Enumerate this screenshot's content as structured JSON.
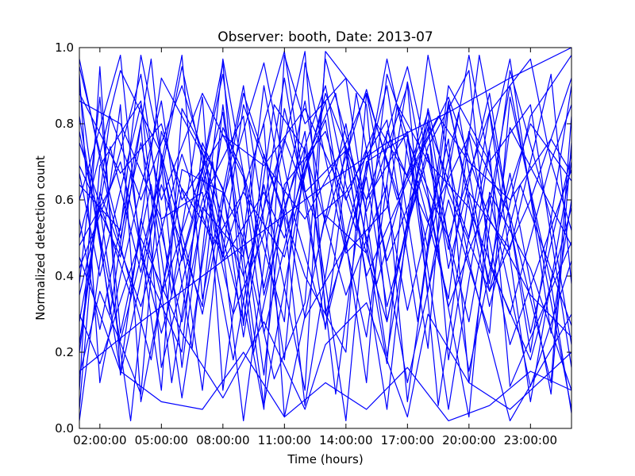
{
  "chart_data": {
    "type": "line",
    "title": "Observer: booth, Date: 2013-07",
    "xlabel": "Time (hours)",
    "ylabel": "Normalized detection count",
    "xlim": [
      "01:00:00",
      "25:00:00"
    ],
    "ylim": [
      0,
      1.0
    ],
    "grid": false,
    "line_color": "#0000ff",
    "x_ticks": [
      {
        "value": "02:00:00",
        "label": "02:00:00"
      },
      {
        "value": "05:00:00",
        "label": "05:00:00"
      },
      {
        "value": "08:00:00",
        "label": "08:00:00"
      },
      {
        "value": "11:00:00",
        "label": "11:00:00"
      },
      {
        "value": "14:00:00",
        "label": "14:00:00"
      },
      {
        "value": "17:00:00",
        "label": "17:00:00"
      },
      {
        "value": "20:00:00",
        "label": "20:00:00"
      },
      {
        "value": "23:00:00",
        "label": "23:00:00"
      }
    ],
    "y_ticks": [
      {
        "value": 0.0,
        "label": "0.0"
      },
      {
        "value": 0.2,
        "label": "0.2"
      },
      {
        "value": 0.4,
        "label": "0.4"
      },
      {
        "value": 0.6,
        "label": "0.6"
      },
      {
        "value": 0.8,
        "label": "0.8"
      },
      {
        "value": 1.0,
        "label": "1.0"
      }
    ],
    "series": [
      {
        "x": [
          "01:00:00",
          "03:00:00",
          "05:00:00",
          "07:00:00",
          "08:30:00",
          "10:00:00",
          "12:00:00",
          "13:00:00",
          "15:00:00",
          "16:00:00",
          "18:00:00",
          "19:00:00",
          "21:00:00",
          "23:00:00",
          "25:00:00"
        ],
        "y": [
          0.86,
          0.8,
          0.55,
          0.62,
          0.18,
          0.64,
          0.1,
          0.99,
          0.85,
          0.28,
          0.79,
          0.42,
          0.88,
          0.2,
          0.9
        ]
      },
      {
        "x": [
          "01:00:00",
          "02:00:00",
          "04:00:00",
          "05:00:00",
          "07:00:00",
          "09:00:00",
          "11:00:00",
          "12:00:00",
          "14:00:00",
          "15:30:00",
          "17:00:00",
          "18:00:00",
          "20:00:00",
          "22:00:00",
          "24:00:00",
          "25:00:00"
        ],
        "y": [
          0.14,
          0.36,
          0.09,
          0.72,
          0.3,
          0.88,
          0.55,
          0.06,
          0.74,
          0.38,
          0.67,
          0.83,
          0.15,
          0.67,
          0.09,
          0.75
        ]
      },
      {
        "x": [
          "01:00:00",
          "02:30:00",
          "03:30:00",
          "05:00:00",
          "06:00:00",
          "08:00:00",
          "09:00:00",
          "11:00:00",
          "12:30:00",
          "14:00:00",
          "16:00:00",
          "17:00:00",
          "19:00:00",
          "21:00:00",
          "23:00:00",
          "25:00:00"
        ],
        "y": [
          0.9,
          0.3,
          0.67,
          0.1,
          0.84,
          0.63,
          0.24,
          0.92,
          0.43,
          0.8,
          0.17,
          0.76,
          0.5,
          0.83,
          0.07,
          0.7
        ]
      },
      {
        "x": [
          "01:00:00",
          "03:00:00",
          "04:00:00",
          "06:00:00",
          "07:00:00",
          "09:00:00",
          "10:30:00",
          "12:00:00",
          "13:00:00",
          "15:00:00",
          "17:00:00",
          "18:30:00",
          "20:00:00",
          "22:00:00",
          "24:00:00",
          "25:00:00"
        ],
        "y": [
          0.6,
          0.98,
          0.45,
          0.2,
          0.75,
          0.5,
          0.13,
          0.33,
          0.97,
          0.57,
          0.9,
          0.06,
          0.62,
          0.47,
          0.93,
          0.38
        ]
      },
      {
        "x": [
          "01:00:00",
          "02:00:00",
          "03:00:00",
          "05:00:00",
          "07:00:00",
          "08:00:00",
          "10:00:00",
          "12:00:00",
          "13:00:00",
          "14:00:00",
          "16:00:00",
          "18:00:00",
          "19:00:00",
          "21:00:00",
          "22:00:00",
          "25:00:00"
        ],
        "y": [
          0.1,
          0.95,
          0.14,
          0.64,
          0.32,
          0.85,
          0.06,
          0.68,
          0.81,
          0.47,
          0.9,
          0.21,
          0.85,
          0.38,
          0.79,
          0.48
        ]
      },
      {
        "x": [
          "01:00:00",
          "02:30:00",
          "04:00:00",
          "05:30:00",
          "07:00:00",
          "08:00:00",
          "09:30:00",
          "11:00:00",
          "13:00:00",
          "14:30:00",
          "16:00:00",
          "17:30:00",
          "19:00:00",
          "20:30:00",
          "23:00:00",
          "25:00:00"
        ],
        "y": [
          0.48,
          0.63,
          0.93,
          0.35,
          0.87,
          0.1,
          0.71,
          0.99,
          0.26,
          0.88,
          0.44,
          0.65,
          0.34,
          0.98,
          0.25,
          0.72
        ]
      },
      {
        "x": [
          "01:00:00",
          "03:00:00",
          "05:00:00",
          "06:00:00",
          "08:00:00",
          "10:00:00",
          "11:00:00",
          "13:00:00",
          "15:00:00",
          "16:00:00",
          "18:00:00",
          "20:00:00",
          "21:00:00",
          "23:00:00",
          "25:00:00"
        ],
        "y": [
          0.78,
          0.23,
          0.67,
          0.95,
          0.45,
          0.8,
          0.03,
          0.56,
          0.46,
          0.93,
          0.6,
          0.03,
          0.62,
          0.42,
          0.1
        ]
      },
      {
        "x": [
          "01:00:00",
          "02:00:00",
          "03:30:00",
          "05:00:00",
          "06:30:00",
          "08:00:00",
          "09:00:00",
          "10:00:00",
          "12:00:00",
          "14:00:00",
          "15:00:00",
          "17:00:00",
          "19:00:00",
          "20:00:00",
          "22:00:00",
          "24:00:00",
          "25:00:00"
        ],
        "y": [
          0.35,
          0.58,
          0.02,
          0.78,
          0.55,
          0.96,
          0.27,
          0.72,
          0.4,
          0.2,
          0.88,
          0.31,
          0.76,
          0.12,
          0.94,
          0.55,
          0.22
        ]
      },
      {
        "x": [
          "01:00:00",
          "03:00:00",
          "04:00:00",
          "06:00:00",
          "07:30:00",
          "09:00:00",
          "11:00:00",
          "12:00:00",
          "14:00:00",
          "16:00:00",
          "17:00:00",
          "18:00:00",
          "20:00:00",
          "22:00:00",
          "25:00:00"
        ],
        "y": [
          0.95,
          0.5,
          0.75,
          0.28,
          0.7,
          0.02,
          0.84,
          0.62,
          0.73,
          0.05,
          0.55,
          0.98,
          0.44,
          0.02,
          0.3
        ]
      },
      {
        "x": [
          "01:00:00",
          "02:00:00",
          "04:00:00",
          "05:00:00",
          "07:00:00",
          "09:00:00",
          "10:00:00",
          "12:00:00",
          "13:30:00",
          "15:00:00",
          "17:00:00",
          "18:00:00",
          "20:00:00",
          "21:30:00",
          "23:00:00",
          "25:00:00"
        ],
        "y": [
          0.55,
          0.26,
          0.8,
          0.16,
          0.6,
          0.82,
          0.35,
          0.78,
          0.09,
          0.7,
          0.77,
          0.36,
          0.98,
          0.55,
          0.8,
          0.65
        ]
      },
      {
        "x": [
          "01:00:00",
          "02:30:00",
          "04:00:00",
          "06:00:00",
          "08:00:00",
          "09:00:00",
          "11:00:00",
          "12:30:00",
          "14:00:00",
          "16:00:00",
          "17:30:00",
          "19:00:00",
          "21:00:00",
          "23:00:00",
          "25:00:00"
        ],
        "y": [
          0.2,
          0.82,
          0.6,
          0.9,
          0.55,
          0.4,
          0.76,
          0.55,
          0.62,
          0.81,
          0.28,
          0.9,
          0.7,
          0.85,
          0.16
        ]
      },
      {
        "x": [
          "01:00:00",
          "03:00:00",
          "04:30:00",
          "06:00:00",
          "07:00:00",
          "09:00:00",
          "10:00:00",
          "12:00:00",
          "14:00:00",
          "15:00:00",
          "16:30:00",
          "18:00:00",
          "20:00:00",
          "22:00:00",
          "24:00:00",
          "25:00:00"
        ],
        "y": [
          0.69,
          0.45,
          0.97,
          0.16,
          0.58,
          0.45,
          0.9,
          0.29,
          0.48,
          0.24,
          0.85,
          0.7,
          0.58,
          0.3,
          0.7,
          0.52
        ]
      },
      {
        "x": [
          "01:00:00",
          "02:00:00",
          "03:00:00",
          "05:00:00",
          "07:00:00",
          "08:00:00",
          "10:00:00",
          "11:30:00",
          "13:00:00",
          "15:00:00",
          "17:00:00",
          "19:00:00",
          "21:00:00",
          "22:00:00",
          "24:00:00",
          "25:00:00"
        ],
        "y": [
          0.93,
          0.12,
          0.4,
          0.86,
          0.1,
          0.6,
          0.96,
          0.55,
          0.27,
          0.73,
          0.12,
          0.6,
          0.25,
          0.87,
          0.38,
          0.04
        ]
      },
      {
        "x": [
          "01:00:00",
          "03:00:00",
          "05:00:00",
          "06:30:00",
          "08:00:00",
          "10:00:00",
          "11:00:00",
          "13:00:00",
          "14:30:00",
          "16:00:00",
          "18:00:00",
          "19:30:00",
          "21:00:00",
          "23:00:00",
          "25:00:00"
        ],
        "y": [
          0.42,
          0.7,
          0.25,
          0.55,
          0.93,
          0.14,
          0.64,
          0.78,
          0.52,
          0.97,
          0.47,
          0.83,
          0.36,
          0.6,
          0.92
        ]
      },
      {
        "x": [
          "01:00:00",
          "02:00:00",
          "04:00:00",
          "05:30:00",
          "07:00:00",
          "08:30:00",
          "10:00:00",
          "12:00:00",
          "13:00:00",
          "15:00:00",
          "16:00:00",
          "18:00:00",
          "20:00:00",
          "21:00:00",
          "23:00:00",
          "25:00:00"
        ],
        "y": [
          0.05,
          0.69,
          0.86,
          0.12,
          0.66,
          0.3,
          0.51,
          0.99,
          0.3,
          0.66,
          0.32,
          0.74,
          0.94,
          0.43,
          0.18,
          0.58
        ]
      },
      {
        "x": [
          "01:00:00",
          "03:30:00",
          "05:00:00",
          "07:00:00",
          "09:00:00",
          "10:30:00",
          "12:00:00",
          "14:00:00",
          "16:00:00",
          "17:00:00",
          "19:00:00",
          "21:00:00",
          "22:30:00",
          "25:00:00"
        ],
        "y": [
          0.75,
          0.35,
          0.92,
          0.72,
          0.28,
          0.85,
          0.73,
          0.35,
          0.64,
          0.07,
          0.86,
          0.32,
          0.64,
          0.27
        ]
      },
      {
        "x": [
          "01:00:00",
          "02:30:00",
          "04:00:00",
          "06:00:00",
          "07:00:00",
          "09:00:00",
          "11:00:00",
          "12:00:00",
          "14:00:00",
          "15:00:00",
          "17:00:00",
          "19:00:00",
          "20:00:00",
          "22:00:00",
          "24:00:00",
          "25:00:00"
        ],
        "y": [
          0.28,
          0.74,
          0.41,
          0.98,
          0.34,
          0.9,
          0.18,
          0.74,
          0.02,
          0.6,
          0.95,
          0.47,
          0.78,
          0.56,
          0.12,
          0.82
        ]
      },
      {
        "x": [
          "01:00:00",
          "03:00:00",
          "04:00:00",
          "05:00:00",
          "07:00:00",
          "08:00:00",
          "10:00:00",
          "11:00:00",
          "13:00:00",
          "15:00:00",
          "16:00:00",
          "18:00:00",
          "20:00:00",
          "22:00:00",
          "25:00:00"
        ],
        "y": [
          0.82,
          0.15,
          0.55,
          0.35,
          0.68,
          0.44,
          0.62,
          0.5,
          0.86,
          0.12,
          0.78,
          0.54,
          0.77,
          0.22,
          0.68
        ]
      },
      {
        "x": [
          "01:00:00",
          "02:00:00",
          "03:00:00",
          "04:30:00",
          "06:00:00",
          "08:00:00",
          "09:00:00",
          "11:00:00",
          "12:00:00",
          "14:00:00",
          "16:00:00",
          "17:00:00",
          "19:00:00",
          "21:00:00",
          "23:00:00",
          "25:00:00"
        ],
        "y": [
          0.38,
          0.87,
          0.25,
          0.64,
          0.08,
          0.79,
          0.67,
          0.28,
          0.96,
          0.46,
          0.58,
          0.91,
          0.32,
          0.61,
          0.11,
          0.44
        ]
      },
      {
        "x": [
          "01:00:00",
          "03:00:00",
          "04:00:00",
          "06:00:00",
          "08:00:00",
          "09:30:00",
          "11:00:00",
          "13:00:00",
          "14:00:00",
          "16:00:00",
          "18:00:00",
          "19:00:00",
          "21:00:00",
          "23:00:00",
          "24:00:00",
          "25:00:00"
        ],
        "y": [
          0.64,
          0.52,
          0.98,
          0.44,
          0.83,
          0.2,
          0.58,
          0.9,
          0.64,
          0.28,
          0.81,
          0.18,
          0.83,
          0.97,
          0.7,
          0.85
        ]
      },
      {
        "x": [
          "01:00:00",
          "02:00:00",
          "04:00:00",
          "06:00:00",
          "07:30:00",
          "09:00:00",
          "11:00:00",
          "13:00:00",
          "15:00:00",
          "17:00:00",
          "19:00:00",
          "21:00:00",
          "22:00:00",
          "25:00:00"
        ],
        "y": [
          0.22,
          0.62,
          0.32,
          0.72,
          0.48,
          0.62,
          0.45,
          0.88,
          0.6,
          0.78,
          0.05,
          0.73,
          0.11,
          0.49
        ]
      },
      {
        "x": [
          "01:00:00",
          "04:00:00",
          "07:00:00",
          "10:00:00",
          "13:00:00",
          "16:00:00",
          "19:00:00",
          "22:00:00",
          "25:00:00"
        ],
        "y": [
          0.15,
          0.28,
          0.4,
          0.52,
          0.64,
          0.75,
          0.83,
          0.92,
          1.0
        ]
      },
      {
        "x": [
          "01:00:00",
          "03:00:00",
          "05:00:00",
          "06:30:00",
          "08:00:00",
          "10:00:00",
          "12:00:00",
          "13:00:00",
          "15:00:00",
          "16:30:00",
          "18:00:00",
          "20:00:00",
          "22:00:00",
          "24:00:00",
          "25:00:00"
        ],
        "y": [
          0.5,
          0.94,
          0.72,
          0.21,
          0.97,
          0.37,
          0.86,
          0.54,
          0.89,
          0.6,
          0.8,
          0.5,
          0.97,
          0.25,
          0.6
        ]
      },
      {
        "x": [
          "01:00:00",
          "02:30:00",
          "04:30:00",
          "06:00:00",
          "08:00:00",
          "10:00:00",
          "11:00:00",
          "12:00:00",
          "14:00:00",
          "16:00:00",
          "18:00:00",
          "19:00:00",
          "21:00:00",
          "23:00:00",
          "25:00:00"
        ],
        "y": [
          0.97,
          0.58,
          0.18,
          0.68,
          0.62,
          0.05,
          0.98,
          0.8,
          0.92,
          0.19,
          0.84,
          0.62,
          0.36,
          0.82,
          0.98
        ]
      },
      {
        "x": [
          "01:00:00",
          "03:00:00",
          "04:00:00",
          "06:00:00",
          "08:00:00",
          "09:00:00",
          "10:00:00",
          "12:00:00",
          "14:00:00",
          "15:00:00",
          "17:00:00",
          "18:00:00",
          "20:00:00",
          "22:00:00",
          "25:00:00"
        ],
        "y": [
          0.02,
          0.85,
          0.07,
          0.63,
          0.46,
          0.85,
          0.7,
          0.55,
          0.75,
          0.88,
          0.53,
          0.72,
          0.28,
          0.9,
          0.05
        ]
      },
      {
        "x": [
          "01:00:00",
          "02:00:00",
          "04:00:00",
          "05:00:00",
          "07:00:00",
          "09:00:00",
          "10:00:00",
          "12:00:00",
          "13:30:00",
          "15:00:00",
          "17:00:00",
          "19:00:00",
          "21:00:00",
          "23:00:00",
          "25:00:00"
        ],
        "y": [
          0.67,
          0.4,
          0.85,
          0.6,
          0.88,
          0.66,
          0.25,
          0.7,
          0.88,
          0.4,
          0.65,
          0.87,
          0.55,
          0.35,
          0.24
        ]
      },
      {
        "x": [
          "01:00:00",
          "03:00:00",
          "05:00:00",
          "06:00:00",
          "08:00:00",
          "10:00:00",
          "12:00:00",
          "14:00:00",
          "15:30:00",
          "17:00:00",
          "18:30:00",
          "20:00:00",
          "22:00:00",
          "24:00:00",
          "25:00:00"
        ],
        "y": [
          0.88,
          0.67,
          0.8,
          0.6,
          0.77,
          0.69,
          0.84,
          0.6,
          0.8,
          0.66,
          0.82,
          0.7,
          0.6,
          0.76,
          0.67
        ]
      },
      {
        "x": [
          "01:00:00",
          "02:00:00",
          "04:00:00",
          "06:00:00",
          "08:00:00",
          "10:00:00",
          "12:00:00",
          "13:00:00",
          "15:00:00",
          "17:00:00",
          "18:00:00",
          "20:00:00",
          "22:00:00",
          "25:00:00"
        ],
        "y": [
          0.3,
          0.17,
          0.5,
          0.25,
          0.08,
          0.28,
          0.05,
          0.22,
          0.33,
          0.03,
          0.3,
          0.12,
          0.05,
          0.2
        ]
      },
      {
        "x": [
          "01:00:00",
          "03:00:00",
          "05:00:00",
          "07:00:00",
          "09:00:00",
          "11:00:00",
          "13:00:00",
          "15:00:00",
          "17:00:00",
          "19:00:00",
          "21:00:00",
          "23:00:00",
          "25:00:00"
        ],
        "y": [
          0.45,
          0.15,
          0.07,
          0.05,
          0.2,
          0.03,
          0.12,
          0.05,
          0.16,
          0.02,
          0.06,
          0.15,
          0.1
        ]
      }
    ]
  }
}
